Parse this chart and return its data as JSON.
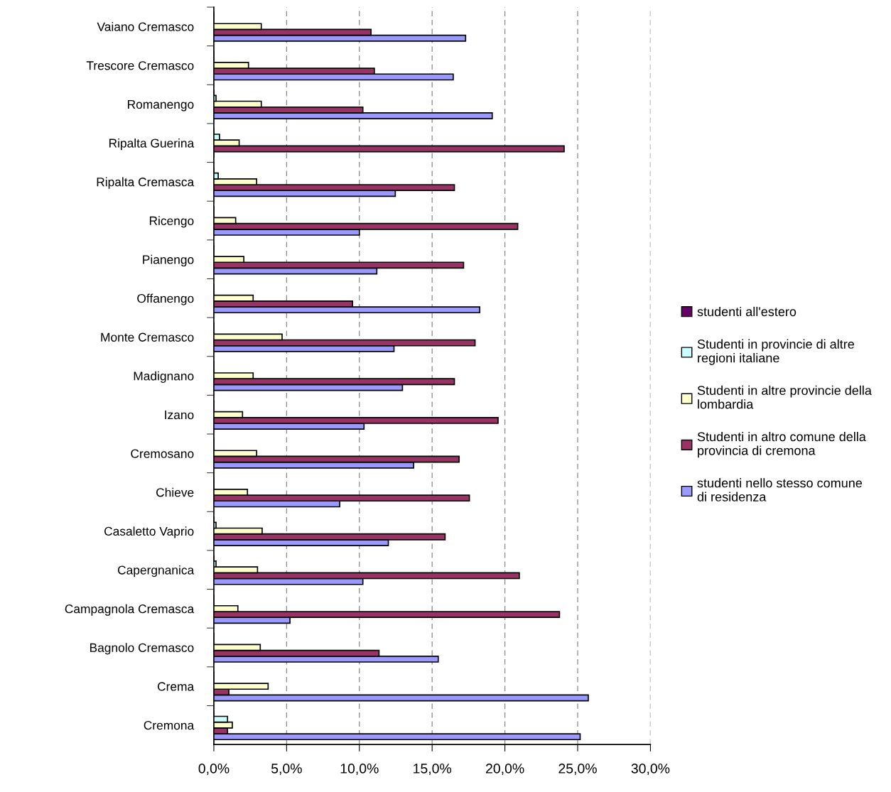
{
  "chart_data": {
    "type": "bar",
    "orientation": "horizontal",
    "categories": [
      "Vaiano Cremasco",
      "Trescore Cremasco",
      "Romanengo",
      "Ripalta Guerina",
      "Ripalta Cremasca",
      "Ricengo",
      "Pianengo",
      "Offanengo",
      "Monte Cremasco",
      "Madignano",
      "Izano",
      "Cremosano",
      "Chieve",
      "Casaletto Vaprio",
      "Capergnanica",
      "Campagnola Cremasca",
      "Bagnolo Cremasco",
      "Crema",
      "Cremona"
    ],
    "series": [
      {
        "name": "studenti nello stesso comune di residenza",
        "color": "#9999ff",
        "values": [
          17.3,
          16.45,
          19.13,
          0,
          12.47,
          10.0,
          11.2,
          18.27,
          12.38,
          12.96,
          10.32,
          13.73,
          8.65,
          11.99,
          10.24,
          5.23,
          15.42,
          25.73,
          25.17
        ]
      },
      {
        "name": "Studenti in altro comune della provincia di cremona",
        "color": "#993366",
        "values": [
          10.8,
          11.03,
          10.24,
          24.07,
          16.53,
          20.88,
          17.16,
          9.53,
          17.95,
          16.53,
          19.53,
          16.85,
          17.56,
          15.89,
          20.99,
          23.75,
          11.35,
          1.03,
          0.94
        ]
      },
      {
        "name": "Studenti in altre provincie della lombardia",
        "color": "#ffffcc",
        "values": [
          3.26,
          2.38,
          3.26,
          1.74,
          2.94,
          1.5,
          2.06,
          2.7,
          4.69,
          2.7,
          1.97,
          2.94,
          2.31,
          3.32,
          3.0,
          1.65,
          3.19,
          3.73,
          1.27
        ]
      },
      {
        "name": "Studenti in provincie di altre regioni italiane",
        "color": "#ccffff",
        "values": [
          0,
          0,
          0.15,
          0.39,
          0.3,
          0,
          0,
          0,
          0,
          0,
          0,
          0,
          0,
          0.15,
          0.15,
          0,
          0,
          0,
          0.94
        ]
      },
      {
        "name": "studenti all'estero",
        "color": "#660066",
        "values": [
          0,
          0,
          0,
          0,
          0,
          0,
          0,
          0,
          0,
          0,
          0,
          0,
          0,
          0,
          0,
          0,
          0,
          0,
          0
        ]
      }
    ],
    "xlim": [
      0,
      30
    ],
    "xticks": [
      {
        "value": 0,
        "label": "0,0%"
      },
      {
        "value": 5,
        "label": "5,0%"
      },
      {
        "value": 10,
        "label": "10,0%"
      },
      {
        "value": 15,
        "label": "15,0%"
      },
      {
        "value": 20,
        "label": "20,0%"
      },
      {
        "value": 25,
        "label": "25,0%"
      },
      {
        "value": 30,
        "label": "30,0%"
      }
    ],
    "grid": "x",
    "legend": "right"
  }
}
